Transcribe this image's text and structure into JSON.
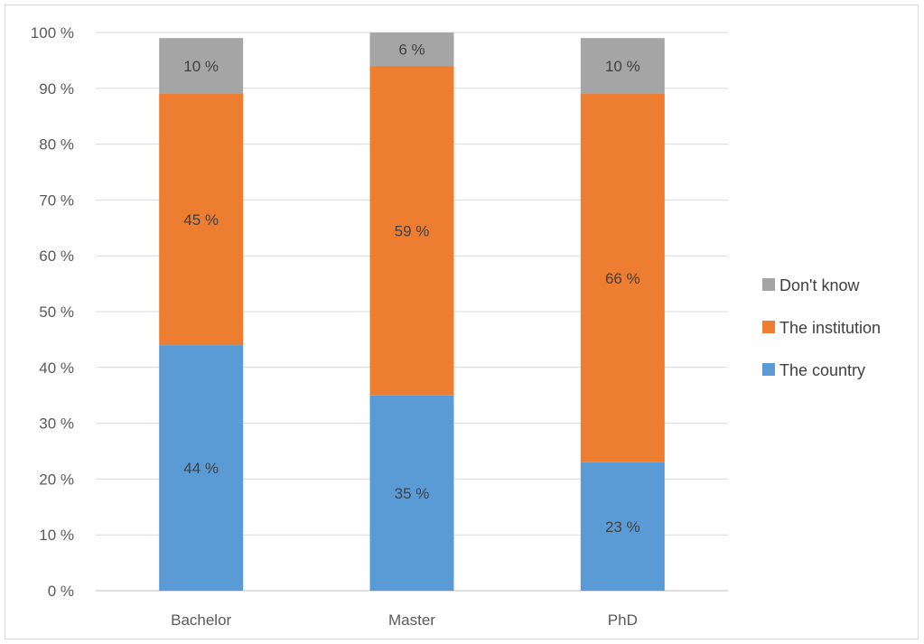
{
  "chart_data": {
    "type": "bar",
    "stacked": true,
    "categories": [
      "Bachelor",
      "Master",
      "PhD"
    ],
    "series": [
      {
        "name": "The country",
        "values": [
          44,
          35,
          23
        ],
        "labels": [
          "44 %",
          "35 %",
          "23 %"
        ],
        "color": "#5b9bd5"
      },
      {
        "name": "The institution",
        "values": [
          45,
          59,
          66
        ],
        "labels": [
          "45 %",
          "59 %",
          "66 %"
        ],
        "color": "#ed7d31"
      },
      {
        "name": "Don't know",
        "values": [
          10,
          6,
          10
        ],
        "labels": [
          "10 %",
          "6 %",
          "10 %"
        ],
        "color": "#a5a5a5"
      }
    ],
    "ylim": [
      0,
      100
    ],
    "yticks": [
      "0 %",
      "10 %",
      "20 %",
      "30 %",
      "40 %",
      "50 %",
      "60 %",
      "70 %",
      "80 %",
      "90 %",
      "100 %"
    ],
    "grid": true,
    "legend_position": "right",
    "legend_order": [
      "Don't know",
      "The institution",
      "The country"
    ]
  }
}
